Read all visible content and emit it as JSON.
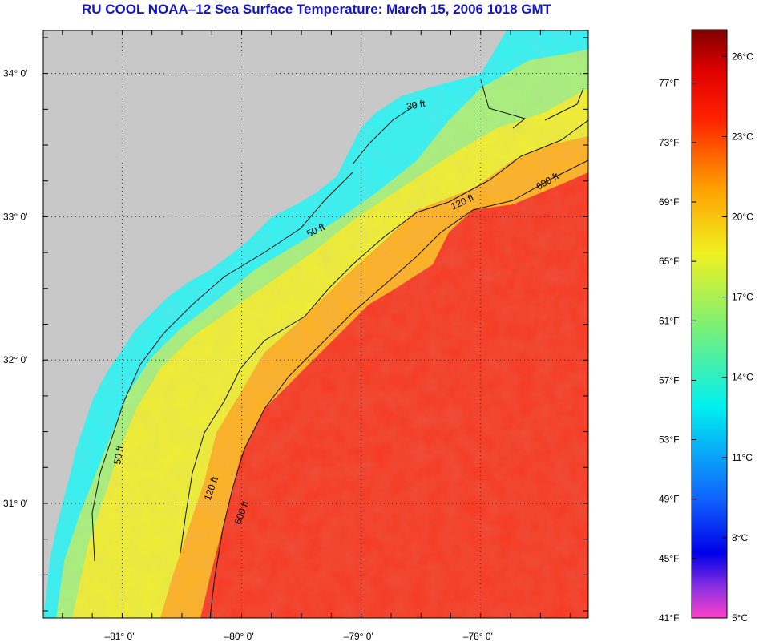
{
  "title": "RU COOL  NOAA–12  Sea Surface Temperature:  March 15, 2006 1018 GMT",
  "map": {
    "lat_ticks": [
      {
        "label": "34° 0'",
        "lat": 34.0
      },
      {
        "label": "33° 0'",
        "lat": 33.0
      },
      {
        "label": "32° 0'",
        "lat": 32.0
      },
      {
        "label": "31° 0'",
        "lat": 31.0
      }
    ],
    "lon_ticks": [
      {
        "label": "–81° 0'",
        "lon": -81.0
      },
      {
        "label": "–80° 0'",
        "lon": -80.0
      },
      {
        "label": "–79° 0'",
        "lon": -79.0
      },
      {
        "label": "–78° 0'",
        "lon": -78.0
      }
    ],
    "extent": {
      "lon_min": -81.66,
      "lon_max": -77.1,
      "lat_min": 30.2,
      "lat_max": 34.3
    },
    "isobath_labels": [
      "30 ft",
      "50 ft",
      "120 ft",
      "600 ft"
    ],
    "colors": {
      "land": "#c8c8c8",
      "shelf_cold": "#33f2f2",
      "midshelf": "#a8f07a",
      "outer_shelf": "#f0ee30",
      "slope": "#ffb020",
      "gulf_stream": "#f83820",
      "contour": "#111111",
      "grid": "#222222"
    }
  },
  "colorbar": {
    "min_c": 5,
    "max_c": 27,
    "gradient": [
      {
        "t": 0.0,
        "color": "#ff40c8"
      },
      {
        "t": 0.05,
        "color": "#9030e0"
      },
      {
        "t": 0.11,
        "color": "#0000e8"
      },
      {
        "t": 0.2,
        "color": "#1060ff"
      },
      {
        "t": 0.36,
        "color": "#00f0f0"
      },
      {
        "t": 0.5,
        "color": "#80f070"
      },
      {
        "t": 0.62,
        "color": "#f0f020"
      },
      {
        "t": 0.73,
        "color": "#ffa000"
      },
      {
        "t": 0.85,
        "color": "#ff2000"
      },
      {
        "t": 0.93,
        "color": "#e00000"
      },
      {
        "t": 1.0,
        "color": "#800000"
      }
    ],
    "celsius_labels": [
      "26°C",
      "23°C",
      "20°C",
      "17°C",
      "14°C",
      "11°C",
      "8°C",
      "5°C"
    ],
    "celsius_values": [
      26,
      23,
      20,
      17,
      14,
      11,
      8,
      5
    ],
    "fahrenheit_labels": [
      "77°F",
      "73°F",
      "69°F",
      "65°F",
      "61°F",
      "57°F",
      "53°F",
      "49°F",
      "45°F",
      "41°F"
    ],
    "fahrenheit_values": [
      77,
      73,
      69,
      65,
      61,
      57,
      53,
      49,
      45,
      41
    ]
  }
}
